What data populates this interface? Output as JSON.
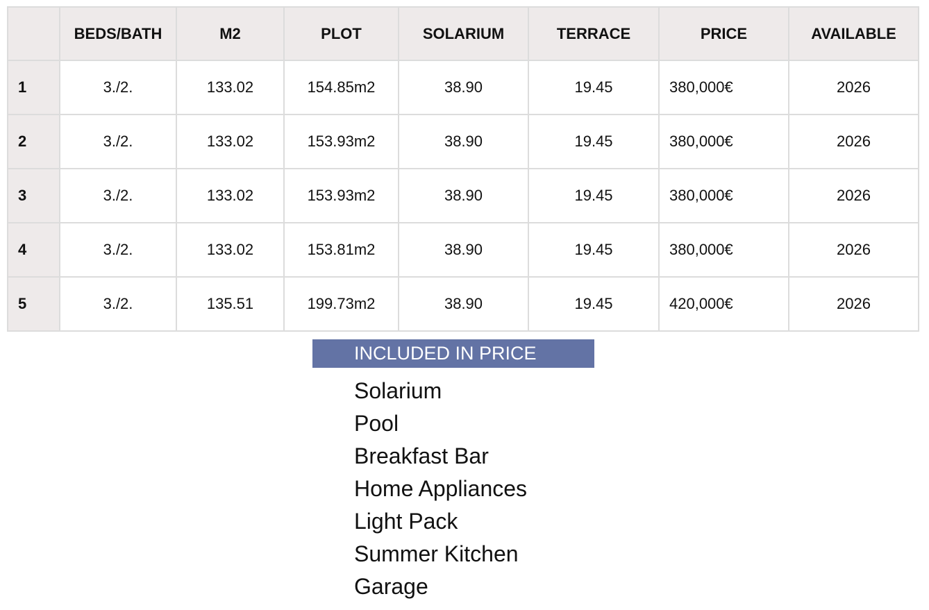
{
  "table": {
    "headers": [
      "",
      "BEDS/BATH",
      "M2",
      "PLOT",
      "SOLARIUM",
      "TERRACE",
      "PRICE",
      "AVAILABLE"
    ],
    "rows": [
      [
        "1",
        "3./2.",
        "133.02",
        "154.85m2",
        "38.90",
        "19.45",
        "380,000€",
        "2026"
      ],
      [
        "2",
        "3./2.",
        "133.02",
        "153.93m2",
        "38.90",
        "19.45",
        "380,000€",
        "2026"
      ],
      [
        "3",
        "3./2.",
        "133.02",
        "153.93m2",
        "38.90",
        "19.45",
        "380,000€",
        "2026"
      ],
      [
        "4",
        "3./2.",
        "133.02",
        "153.81m2",
        "38.90",
        "19.45",
        "380,000€",
        "2026"
      ],
      [
        "5",
        "3./2.",
        "135.51",
        "199.73m2",
        "38.90",
        "19.45",
        "420,000€",
        "2026"
      ]
    ]
  },
  "included": {
    "title": "INCLUDED IN PRICE",
    "color": "#6373a5",
    "items": [
      "Solarium",
      "Pool",
      "Breakfast Bar",
      "Home Appliances",
      "Light Pack",
      "Summer Kitchen",
      "Garage"
    ]
  }
}
